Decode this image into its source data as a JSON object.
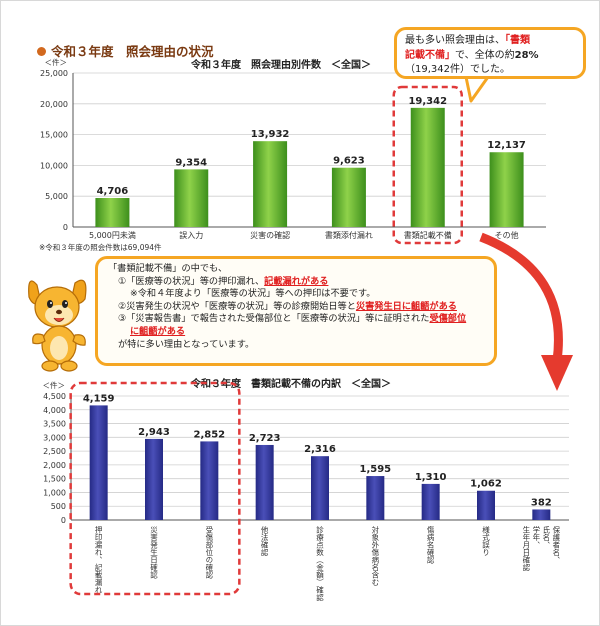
{
  "section_title": "令和３年度　照会理由の状況",
  "callout1": {
    "p1": "最も多い照会理由は、",
    "q1": "「書類",
    "q2": "記載不備」",
    "p2": "で、全体の約",
    "pct": "28%",
    "line3": "（19,342件）でした。"
  },
  "callout2": {
    "l1": "「書類記載不備」の中でも、",
    "l2a": "①「医療等の状況」等の押印漏れ、",
    "l2b": "記載漏れがある",
    "l3": "※令和４年度より「医療等の状況」等への押印は不要です。",
    "l4a": "②災害発生の状況や「医療等の状況」等の診療開始日等と",
    "l4b": "災害発生日に齟齬がある",
    "l5a": "③「災害報告書」で報告された受傷部位と「医療等の状況」等に証明された",
    "l5b": "受傷部位",
    "l6": "に齟齬がある",
    "l7": "が特に多い理由となっています。"
  },
  "note1": "※令和３年度の照会件数は69,094件",
  "colors": {
    "green_top": "#8fd24a",
    "green_bottom": "#3d8f1c",
    "blue_top": "#4a4fb8",
    "blue_bottom": "#252a85",
    "highlight": "#e03a3a",
    "callout_border": "#f5a623",
    "section_dot": "#d2691e"
  },
  "chart_data": [
    {
      "type": "bar",
      "title": "令和３年度　照会理由別件数　＜全国＞",
      "ylabel": "＜件＞",
      "ylim": [
        0,
        25000
      ],
      "yticks": [
        0,
        5000,
        10000,
        15000,
        20000,
        25000
      ],
      "ytick_labels": [
        "0",
        "5,000",
        "10,000",
        "15,000",
        "20,000",
        "25,000"
      ],
      "categories": [
        "5,000円未満",
        "誤入力",
        "災害の確認",
        "書類添付漏れ",
        "書類記載不備",
        "その他"
      ],
      "values": [
        4706,
        9354,
        13932,
        9623,
        19342,
        12137
      ],
      "value_labels": [
        "4,706",
        "9,354",
        "13,932",
        "9,623",
        "19,342",
        "12,137"
      ],
      "grid": true,
      "legend": "none",
      "highlighted_category": "書類記載不備"
    },
    {
      "type": "bar",
      "title": "令和３年度　書類記載不備の内訳　＜全国＞",
      "ylabel": "＜件＞",
      "ylim": [
        0,
        4500
      ],
      "yticks": [
        0,
        500,
        1000,
        1500,
        2000,
        2500,
        3000,
        3500,
        4000,
        4500
      ],
      "ytick_labels": [
        "0",
        "500",
        "1,000",
        "1,500",
        "2,000",
        "2,500",
        "3,000",
        "3,500",
        "4,000",
        "4,500"
      ],
      "categories": [
        "押印漏れ、記載漏れ",
        "災害発生日確認",
        "受傷部位の確認",
        "他法確認",
        "診療点数（金額）確認",
        "対象外傷病名含む",
        "傷病名確認",
        "様式誤り",
        "保護者名、氏名、学年、生年月日確認"
      ],
      "values": [
        4159,
        2943,
        2852,
        2723,
        2316,
        1595,
        1310,
        1062,
        382
      ],
      "value_labels": [
        "4,159",
        "2,943",
        "2,852",
        "2,723",
        "2,316",
        "1,595",
        "1,310",
        "1,062",
        "382"
      ],
      "grid": true,
      "legend": "none",
      "highlighted_categories": [
        "押印漏れ、記載漏れ",
        "災害発生日確認",
        "受傷部位の確認"
      ]
    }
  ]
}
